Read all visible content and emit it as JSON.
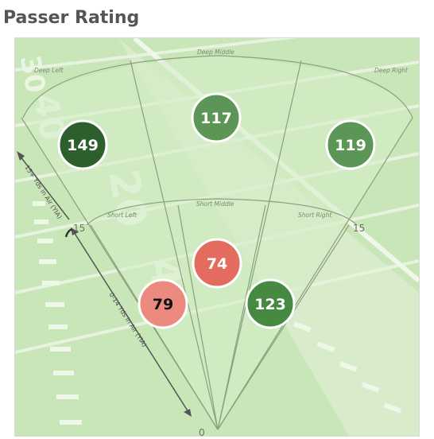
{
  "title": "Passer Rating",
  "zones": {
    "deep_left": "Deep Left",
    "deep_middle": "Deep Middle",
    "deep_right": "Deep Right",
    "short_left": "Short Left",
    "short_middle": "Short Middle",
    "short_right": "Short Right"
  },
  "ratings": {
    "deep_left": "149",
    "deep_middle": "117",
    "deep_right": "119",
    "short_left": "79",
    "short_middle": "74",
    "short_right": "123"
  },
  "colors": {
    "deep_left": "#2d5f2c",
    "deep_middle": "#5c9656",
    "deep_right": "#5c9656",
    "short_left": "#ed8a80",
    "short_middle": "#e46c5f",
    "short_right": "#468a42"
  },
  "distance_labels": {
    "zero": "0",
    "fifteen_left": "15",
    "fifteen_right": "15"
  },
  "arrows": {
    "deep": "15+ Yds in Air (YIA)",
    "short": "0-14 Yds in Air (YIA)"
  },
  "field_numbers": {
    "top": "40",
    "mid": "20",
    "partial_top": "30",
    "partial_low": "40"
  }
}
